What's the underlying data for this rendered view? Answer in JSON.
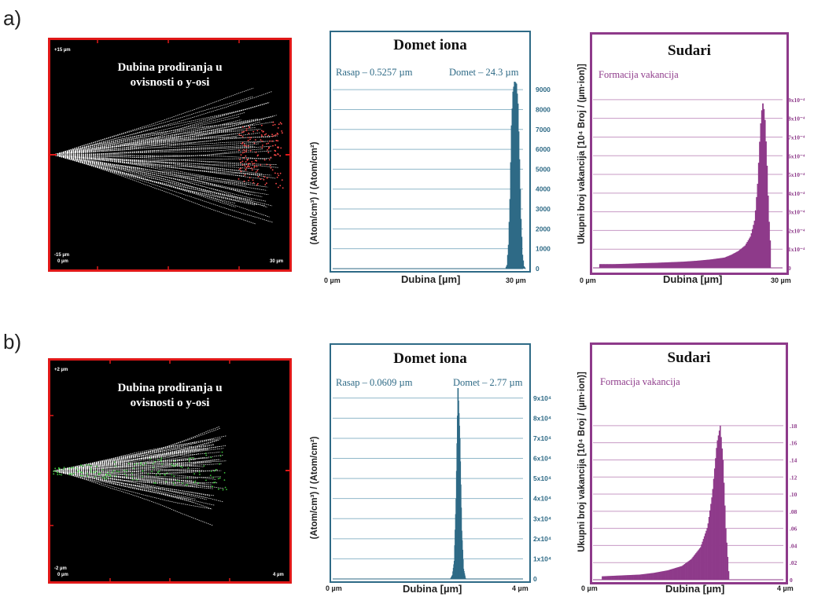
{
  "row_labels": [
    "a)",
    "b)"
  ],
  "panels": [
    {
      "track": {
        "title_line1": "Dubina prodiranja u",
        "title_line2": "ovisnosti o y-osi",
        "y_top": "+15 µm",
        "y_bottom": "-15 µm",
        "x_start": "0 µm",
        "x_end": "30 µm",
        "mid_label": "30",
        "colors": {
          "frame": "#e01818",
          "background": "#000000",
          "ion": "#ffffff",
          "recoil": "#ff4a4a"
        }
      },
      "range": {
        "title": "Domet iona",
        "straggle": "Rasap – 0.5257 µm",
        "projected": "Domet – 24.3 µm",
        "ylabel": "(Atom/cm³) / (Atom/cm²)",
        "xlabel": "Dubina [µm]",
        "x_start": "0 µm",
        "x_end": "30 µm",
        "color": "#2e6a86"
      },
      "collisions": {
        "title": "Sudari",
        "legend": "Formacija vakancija",
        "ylabel": "Ukupni broj vakancija  [10⁴ Broj / (µm·ion)]",
        "xlabel": "Dubina [µm]",
        "x_start": "0 µm",
        "x_end": "30 µm",
        "color": "#8e3a8a"
      }
    },
    {
      "track": {
        "title_line1": "Dubina prodiranja u",
        "title_line2": "ovisnosti o y-osi",
        "y_top": "+2 µm",
        "y_bottom": "-2 µm",
        "x_start": "0 µm",
        "x_end": "4 µm",
        "mid_label": "",
        "colors": {
          "frame": "#e01818",
          "background": "#000000",
          "ion": "#ffffff",
          "recoil": "#3cc83c"
        }
      },
      "range": {
        "title": "Domet iona",
        "straggle": "Rasap – 0.0609 µm",
        "projected": "Domet – 2.77 µm",
        "ylabel": "(Atom/cm³) / (Atom/cm²)",
        "xlabel": "Dubina [µm]",
        "x_start": "0 µm",
        "x_end": "4 µm",
        "color": "#2e6a86"
      },
      "collisions": {
        "title": "Sudari",
        "legend": "Formacija vakancija",
        "ylabel": "Ukupni broj vakancija  [10⁴ Broj / (µm·ion)]",
        "xlabel": "Dubina [µm]",
        "x_start": "0 µm",
        "x_end": "4 µm",
        "color": "#8e3a8a"
      }
    }
  ],
  "chart_data": [
    {
      "type": "bar",
      "title": "Domet iona",
      "xlabel": "Dubina [µm]",
      "ylabel": "(Atom/cm³) / (Atom/cm²)",
      "xlim": [
        0,
        30
      ],
      "ylim": [
        0,
        9400
      ],
      "yticks": [
        "0",
        "1000",
        "2000",
        "3000",
        "4000",
        "5000",
        "6000",
        "7000",
        "8000",
        "9000"
      ],
      "series": [
        {
          "values": [
            {
              "x": 23.0,
              "y": 10
            },
            {
              "x": 23.2,
              "y": 180
            },
            {
              "x": 23.4,
              "y": 1200
            },
            {
              "x": 23.6,
              "y": 3500
            },
            {
              "x": 23.8,
              "y": 7200
            },
            {
              "x": 24.0,
              "y": 8900
            },
            {
              "x": 24.2,
              "y": 9400
            },
            {
              "x": 24.4,
              "y": 9300
            },
            {
              "x": 24.6,
              "y": 8300
            },
            {
              "x": 24.8,
              "y": 5500
            },
            {
              "x": 25.0,
              "y": 2500
            },
            {
              "x": 25.2,
              "y": 700
            },
            {
              "x": 25.4,
              "y": 120
            },
            {
              "x": 25.6,
              "y": 10
            }
          ]
        }
      ]
    },
    {
      "type": "bar",
      "title": "Sudari",
      "xlabel": "Dubina [µm]",
      "ylabel": "Ukupni broj vakancija  [10⁴ Broj / (µm·ion)]",
      "xlim": [
        0,
        30
      ],
      "ylim": [
        0,
        0.00095
      ],
      "yticks": [
        "0",
        "1x10⁻⁴",
        "2x10⁻⁴",
        "3x10⁻⁴",
        "4x10⁻⁴",
        "5x10⁻⁴",
        "6x10⁻⁴",
        "7x10⁻⁴",
        "8x10⁻⁴",
        "9x10⁻⁴"
      ],
      "series": [
        {
          "name": "Formacija vakancija",
          "values": [
            {
              "x": 1,
              "y": 2e-05
            },
            {
              "x": 3,
              "y": 2e-05
            },
            {
              "x": 5,
              "y": 2.2e-05
            },
            {
              "x": 7,
              "y": 2.5e-05
            },
            {
              "x": 9,
              "y": 2.7e-05
            },
            {
              "x": 11,
              "y": 3e-05
            },
            {
              "x": 13,
              "y": 3.3e-05
            },
            {
              "x": 15,
              "y": 3.8e-05
            },
            {
              "x": 17,
              "y": 4.5e-05
            },
            {
              "x": 19,
              "y": 5.5e-05
            },
            {
              "x": 20,
              "y": 7e-05
            },
            {
              "x": 21,
              "y": 9e-05
            },
            {
              "x": 22,
              "y": 0.00012
            },
            {
              "x": 22.8,
              "y": 0.00017
            },
            {
              "x": 23.4,
              "y": 0.00026
            },
            {
              "x": 23.8,
              "y": 0.00045
            },
            {
              "x": 24.2,
              "y": 0.00075
            },
            {
              "x": 24.5,
              "y": 0.00089
            },
            {
              "x": 24.8,
              "y": 0.00083
            },
            {
              "x": 25.1,
              "y": 0.0006
            },
            {
              "x": 25.4,
              "y": 0.00028
            },
            {
              "x": 25.7,
              "y": 8e-05
            }
          ]
        }
      ]
    },
    {
      "type": "bar",
      "title": "Domet iona",
      "xlabel": "Dubina [µm]",
      "ylabel": "(Atom/cm³) / (Atom/cm²)",
      "xlim": [
        0,
        4
      ],
      "ylim": [
        0,
        95000
      ],
      "yticks": [
        "0",
        "1x10⁴",
        "2x10⁴",
        "3x10⁴",
        "4x10⁴",
        "5x10⁴",
        "6x10⁴",
        "7x10⁴",
        "8x10⁴",
        "9x10⁴"
      ],
      "series": [
        {
          "values": [
            {
              "x": 2.6,
              "y": 300
            },
            {
              "x": 2.64,
              "y": 2000
            },
            {
              "x": 2.68,
              "y": 9000
            },
            {
              "x": 2.72,
              "y": 40000
            },
            {
              "x": 2.76,
              "y": 95000
            },
            {
              "x": 2.8,
              "y": 70000
            },
            {
              "x": 2.84,
              "y": 24000
            },
            {
              "x": 2.88,
              "y": 5000
            },
            {
              "x": 2.92,
              "y": 600
            }
          ]
        }
      ]
    },
    {
      "type": "bar",
      "title": "Sudari",
      "xlabel": "Dubina [µm]",
      "ylabel": "Ukupni broj vakancija  [10⁴ Broj / (µm·ion)]",
      "xlim": [
        0,
        4
      ],
      "ylim": [
        0,
        0.19
      ],
      "yticks": [
        "0",
        ".02",
        ".04",
        ".06",
        ".08",
        ".10",
        ".12",
        ".14",
        ".16",
        ".18"
      ],
      "series": [
        {
          "name": "Formacija vakancija",
          "values": [
            {
              "x": 0.2,
              "y": 0.004
            },
            {
              "x": 0.6,
              "y": 0.005
            },
            {
              "x": 1.0,
              "y": 0.006
            },
            {
              "x": 1.3,
              "y": 0.008
            },
            {
              "x": 1.6,
              "y": 0.011
            },
            {
              "x": 1.9,
              "y": 0.016
            },
            {
              "x": 2.1,
              "y": 0.024
            },
            {
              "x": 2.3,
              "y": 0.038
            },
            {
              "x": 2.45,
              "y": 0.062
            },
            {
              "x": 2.55,
              "y": 0.1
            },
            {
              "x": 2.65,
              "y": 0.16
            },
            {
              "x": 2.72,
              "y": 0.18
            },
            {
              "x": 2.78,
              "y": 0.14
            },
            {
              "x": 2.84,
              "y": 0.06
            },
            {
              "x": 2.9,
              "y": 0.01
            }
          ]
        }
      ]
    }
  ]
}
